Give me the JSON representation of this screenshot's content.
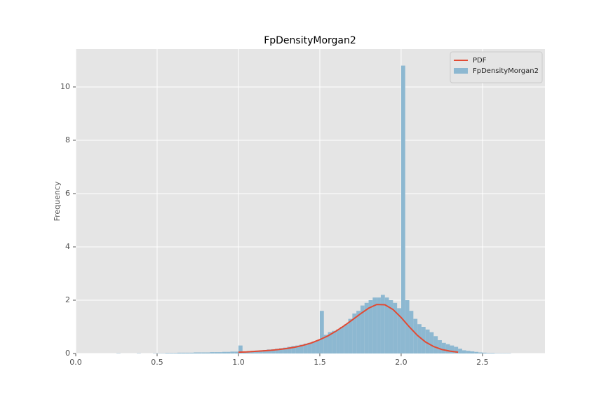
{
  "chart_data": {
    "type": "histogram",
    "title": "FpDensityMorgan2",
    "ylabel": "Frequency",
    "xlim": [
      0,
      2.884
    ],
    "ylim": [
      0,
      11.42
    ],
    "xticks": [
      {
        "value": 0,
        "label": "0.0"
      },
      {
        "value": 0.5,
        "label": "0.5"
      },
      {
        "value": 1,
        "label": "1.0"
      },
      {
        "value": 1.5,
        "label": "1.5"
      },
      {
        "value": 2,
        "label": "2.0"
      },
      {
        "value": 2.5,
        "label": "2.5"
      }
    ],
    "yticks": [
      0,
      2,
      4,
      6,
      8,
      10
    ],
    "grid": true,
    "legend": "upper right",
    "series": [
      {
        "type": "line",
        "name": "PDF",
        "color": "#e24a33",
        "x": [
          1.0,
          1.05,
          1.1,
          1.15,
          1.2,
          1.25,
          1.3,
          1.35,
          1.4,
          1.45,
          1.5,
          1.55,
          1.6,
          1.65,
          1.7,
          1.75,
          1.8,
          1.85,
          1.9,
          1.95,
          2.0,
          2.05,
          2.1,
          2.15,
          2.2,
          2.25,
          2.3,
          2.35
        ],
        "values": [
          0.05,
          0.06,
          0.08,
          0.1,
          0.12,
          0.15,
          0.19,
          0.24,
          0.31,
          0.4,
          0.52,
          0.66,
          0.84,
          1.04,
          1.26,
          1.49,
          1.7,
          1.84,
          1.83,
          1.65,
          1.35,
          1.0,
          0.68,
          0.43,
          0.26,
          0.15,
          0.09,
          0.05
        ]
      },
      {
        "type": "histogram",
        "name": "FpDensityMorgan2",
        "color": "#8db8d1",
        "bins": [
          0.25,
          0.275,
          0.3,
          0.325,
          0.35,
          0.375,
          0.4,
          0.425,
          0.45,
          0.475,
          0.5,
          0.525,
          0.55,
          0.575,
          0.6,
          0.625,
          0.65,
          0.675,
          0.7,
          0.725,
          0.75,
          0.775,
          0.8,
          0.825,
          0.85,
          0.875,
          0.9,
          0.925,
          0.95,
          0.975,
          1.0,
          1.025,
          1.05,
          1.075,
          1.1,
          1.125,
          1.15,
          1.175,
          1.2,
          1.225,
          1.25,
          1.275,
          1.3,
          1.325,
          1.35,
          1.375,
          1.4,
          1.425,
          1.45,
          1.475,
          1.5,
          1.525,
          1.55,
          1.575,
          1.6,
          1.625,
          1.65,
          1.675,
          1.7,
          1.725,
          1.75,
          1.775,
          1.8,
          1.825,
          1.85,
          1.875,
          1.9,
          1.925,
          1.95,
          1.975,
          2.0,
          2.025,
          2.05,
          2.075,
          2.1,
          2.125,
          2.15,
          2.175,
          2.2,
          2.225,
          2.25,
          2.275,
          2.3,
          2.325,
          2.35,
          2.375,
          2.4,
          2.425,
          2.45,
          2.475,
          2.5,
          2.525,
          2.55,
          2.575,
          2.6,
          2.625,
          2.65,
          2.675,
          2.7
        ],
        "counts": [
          0.01,
          0,
          0,
          0,
          0,
          0.01,
          0,
          0,
          0,
          0.01,
          0.01,
          0.01,
          0.02,
          0.02,
          0.02,
          0.03,
          0.03,
          0.03,
          0.03,
          0.04,
          0.04,
          0.04,
          0.04,
          0.05,
          0.05,
          0.05,
          0.06,
          0.06,
          0.07,
          0.07,
          0.3,
          0.08,
          0.09,
          0.1,
          0.11,
          0.12,
          0.13,
          0.15,
          0.16,
          0.18,
          0.2,
          0.22,
          0.25,
          0.28,
          0.3,
          0.33,
          0.37,
          0.4,
          0.45,
          0.5,
          1.6,
          0.7,
          0.8,
          0.85,
          0.9,
          1.0,
          1.1,
          1.3,
          1.5,
          1.6,
          1.8,
          1.9,
          2.0,
          2.1,
          2.1,
          2.2,
          2.1,
          2.0,
          1.9,
          1.7,
          10.8,
          2.0,
          1.6,
          1.3,
          1.1,
          1.0,
          0.9,
          0.8,
          0.65,
          0.5,
          0.4,
          0.35,
          0.3,
          0.25,
          0.18,
          0.12,
          0.1,
          0.08,
          0.06,
          0.04,
          0.03,
          0.02,
          0.02,
          0.01,
          0.01,
          0.01,
          0.01,
          0
        ]
      }
    ]
  }
}
